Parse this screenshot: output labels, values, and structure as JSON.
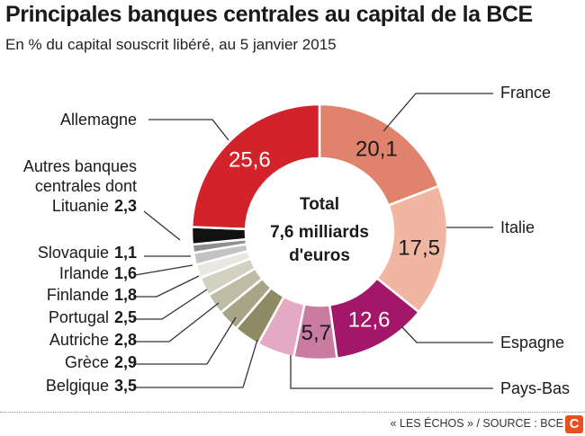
{
  "chart_data": {
    "type": "pie",
    "title": "Principales banques centrales au capital de la BCE",
    "subtitle": "En % du capital souscrit libéré, au 5 janvier 2015",
    "center_label": [
      "Total",
      "7,6 milliards",
      "d'euros"
    ],
    "slices": [
      {
        "name": "France",
        "value": 20.1,
        "display": "20,1",
        "color": "#e0826c",
        "text_color": "#1a1a1a"
      },
      {
        "name": "Italie",
        "value": 17.5,
        "display": "17,5",
        "color": "#f1b6a1",
        "text_color": "#1a1a1a"
      },
      {
        "name": "Espagne",
        "value": 12.6,
        "display": "12,6",
        "color": "#a3176a",
        "text_color": "#ffffff"
      },
      {
        "name": "Pays-Bas",
        "value": 5.7,
        "display": "5,7",
        "color": "#c97ba1",
        "text_color": "#1a1a1a"
      },
      {
        "name": "",
        "value": 5.0,
        "display": "",
        "color": "#e4a9c3",
        "text_color": "#1a1a1a"
      },
      {
        "name": "Belgique",
        "value": 3.5,
        "display": "3,5",
        "color": "#8f8a66",
        "text_color": "#1a1a1a"
      },
      {
        "name": "Grèce",
        "value": 2.9,
        "display": "2,9",
        "color": "#a7a487",
        "text_color": "#1a1a1a"
      },
      {
        "name": "Autriche",
        "value": 2.8,
        "display": "2,8",
        "color": "#bebca5",
        "text_color": "#1a1a1a"
      },
      {
        "name": "Portugal",
        "value": 2.5,
        "display": "2,5",
        "color": "#d3d1c2",
        "text_color": "#1a1a1a"
      },
      {
        "name": "Finlande",
        "value": 1.8,
        "display": "1,8",
        "color": "#e8e7e0",
        "text_color": "#1a1a1a"
      },
      {
        "name": "Irlande",
        "value": 1.6,
        "display": "1,6",
        "color": "#c3c3c3",
        "text_color": "#1a1a1a"
      },
      {
        "name": "Slovaquie",
        "value": 1.1,
        "display": "1,1",
        "color": "#8f8f8f",
        "text_color": "#1a1a1a"
      },
      {
        "name": "Autres banques centrales dont Lituanie",
        "value": 2.3,
        "display": "2,3",
        "color": "#111111",
        "text_color": "#1a1a1a"
      },
      {
        "name": "Allemagne",
        "value": 25.6,
        "display": "25,6",
        "color": "#d3232a",
        "text_color": "#ffffff"
      }
    ]
  },
  "labels": {
    "france": "France",
    "italie": "Italie",
    "espagne": "Espagne",
    "paysbas": "Pays-Bas",
    "allemagne": "Allemagne",
    "autres_line1": "Autres banques",
    "autres_line2": "centrales dont",
    "autres_line3": "Lituanie",
    "autres_value": "2,3",
    "slovaquie": "Slovaquie",
    "slovaquie_value": "1,1",
    "irlande": "Irlande",
    "irlande_value": "1,6",
    "finlande": "Finlande",
    "finlande_value": "1,8",
    "portugal": "Portugal",
    "portugal_value": "2,5",
    "autriche": "Autriche",
    "autriche_value": "2,8",
    "grece": "Grèce",
    "grece_value": "2,9",
    "belgique": "Belgique",
    "belgique_value": "3,5"
  },
  "footer": {
    "source": "« LES ÉCHOS » / SOURCE : BCE",
    "logo_letter": "C"
  }
}
